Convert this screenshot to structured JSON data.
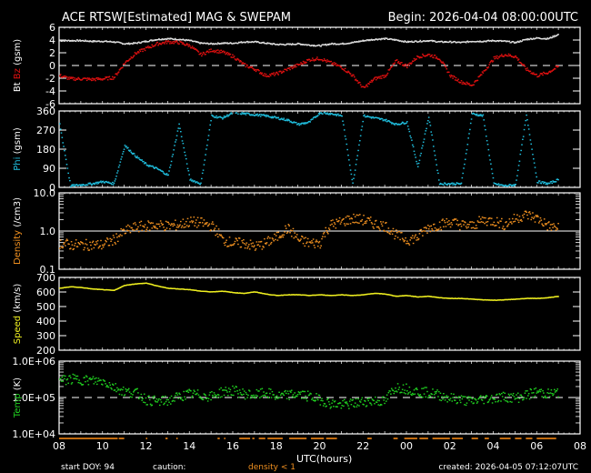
{
  "header": {
    "title": "ACE RTSW[Estimated] MAG & SWEPAM",
    "begin": "Begin: 2026-04-04 08:00:00UTC"
  },
  "footer": {
    "start_doy": "start DOY:  94",
    "caution": "caution:",
    "caution_note": "density < 1",
    "created": "created: 2026-04-05 07:12:07UTC",
    "xlabel": "UTC(hours)"
  },
  "colors": {
    "background": "#000000",
    "axis": "#ffffff",
    "bt": "#e0e0e0",
    "bz": "#e01010",
    "phi": "#20c0e0",
    "density": "#f09020",
    "speed": "#f0f020",
    "temp": "#20d020",
    "caution_bar": "#c06a10"
  },
  "chart_data": [
    {
      "type": "scatter",
      "title": "Bt / Bz",
      "ylabel_parts": [
        "Bt",
        "Bz",
        "(gsm)"
      ],
      "ylabel_colors": [
        "#ffffff",
        "#e01010",
        "#ffffff"
      ],
      "yticks": [
        "6",
        "4",
        "2",
        "0",
        "-2",
        "-4",
        "-6"
      ],
      "ylim": [
        -6,
        6
      ],
      "scale": "linear",
      "reference_line": 0,
      "x": [
        8,
        8.5,
        9,
        9.5,
        10,
        10.5,
        11,
        11.5,
        12,
        12.5,
        13,
        13.5,
        14,
        14.5,
        15,
        15.5,
        16,
        16.5,
        17,
        17.5,
        18,
        18.5,
        19,
        19.5,
        20,
        20.5,
        21,
        21.5,
        22,
        22.5,
        23,
        23.5,
        24,
        24.5,
        25,
        25.5,
        26,
        26.5,
        27,
        27.5,
        28,
        28.5,
        29,
        29.5,
        30,
        30.5,
        31
      ],
      "series": [
        {
          "name": "Bt",
          "color": "#e0e0e0",
          "values": [
            4.0,
            4.0,
            4.0,
            3.9,
            3.9,
            3.8,
            3.5,
            3.6,
            3.9,
            4.2,
            4.3,
            4.2,
            4.0,
            3.6,
            3.5,
            3.6,
            3.6,
            3.8,
            3.8,
            3.6,
            3.4,
            3.4,
            3.5,
            3.3,
            3.2,
            3.5,
            3.5,
            3.7,
            4.0,
            4.2,
            4.3,
            4.1,
            3.8,
            3.9,
            4.0,
            3.8,
            3.8,
            3.7,
            3.9,
            3.9,
            4.0,
            3.9,
            3.7,
            4.2,
            4.4,
            4.3,
            5.0
          ]
        },
        {
          "name": "Bz",
          "color": "#e01010",
          "values": [
            -1.5,
            -2.0,
            -2.0,
            -2.1,
            -2.0,
            -1.8,
            0.5,
            2.0,
            2.8,
            3.5,
            3.8,
            3.7,
            3.2,
            1.8,
            2.5,
            2.2,
            1.5,
            0.2,
            -0.5,
            -1.5,
            -1.2,
            -0.5,
            0.2,
            1.0,
            1.2,
            0.5,
            -0.2,
            -1.5,
            -3.5,
            -2.0,
            -1.5,
            0.8,
            0.0,
            1.5,
            1.8,
            1.2,
            -1.5,
            -2.5,
            -3.0,
            -1.0,
            1.2,
            1.8,
            1.5,
            -0.5,
            -1.5,
            -1.0,
            0.0
          ]
        }
      ]
    },
    {
      "type": "scatter",
      "title": "Phi",
      "ylabel_parts": [
        "Phi",
        "(gsm)"
      ],
      "ylabel_colors": [
        "#20c0e0",
        "#ffffff"
      ],
      "yticks": [
        "360",
        "270",
        "180",
        "90",
        "0"
      ],
      "ylim": [
        0,
        360
      ],
      "scale": "linear",
      "x": [
        8,
        8.5,
        9,
        9.5,
        10,
        10.5,
        11,
        11.5,
        12,
        12.5,
        13,
        13.5,
        14,
        14.5,
        15,
        15.5,
        16,
        16.5,
        17,
        17.5,
        18,
        18.5,
        19,
        19.5,
        20,
        20.5,
        21,
        21.5,
        22,
        22.5,
        23,
        23.5,
        24,
        24.5,
        25,
        25.5,
        26,
        26.5,
        27,
        27.5,
        28,
        28.5,
        29,
        29.5,
        30,
        30.5,
        31
      ],
      "series": [
        {
          "name": "Phi",
          "color": "#20c0e0",
          "values": [
            300,
            10,
            15,
            20,
            30,
            20,
            200,
            150,
            110,
            90,
            60,
            300,
            40,
            20,
            340,
            330,
            355,
            350,
            345,
            340,
            330,
            320,
            300,
            310,
            355,
            350,
            340,
            20,
            340,
            330,
            320,
            300,
            310,
            100,
            335,
            20,
            20,
            20,
            350,
            340,
            20,
            10,
            15,
            340,
            30,
            20,
            40
          ]
        }
      ]
    },
    {
      "type": "scatter",
      "title": "Density",
      "ylabel_parts": [
        "Density",
        "(/cm3)"
      ],
      "ylabel_colors": [
        "#f09020",
        "#ffffff"
      ],
      "yticks": [
        "10.0",
        "1.0",
        "0.1"
      ],
      "ylim": [
        0.1,
        10
      ],
      "scale": "log",
      "reference_line": 1.0,
      "x": [
        8,
        8.5,
        9,
        9.5,
        10,
        10.5,
        11,
        11.5,
        12,
        12.5,
        13,
        13.5,
        14,
        14.5,
        15,
        15.5,
        16,
        16.5,
        17,
        17.5,
        18,
        18.5,
        19,
        19.5,
        20,
        20.5,
        21,
        21.5,
        22,
        22.5,
        23,
        23.5,
        24,
        24.5,
        25,
        25.5,
        26,
        26.5,
        27,
        27.5,
        28,
        28.5,
        29,
        29.5,
        30,
        30.5,
        31
      ],
      "series": [
        {
          "name": "Density",
          "color": "#f09020",
          "values": [
            0.5,
            0.45,
            0.45,
            0.45,
            0.45,
            0.6,
            1.0,
            1.3,
            1.4,
            1.5,
            1.4,
            1.5,
            1.8,
            1.7,
            1.4,
            0.6,
            0.5,
            0.5,
            0.4,
            0.5,
            0.7,
            1.2,
            0.6,
            0.5,
            0.5,
            1.5,
            1.8,
            2.2,
            2.0,
            1.6,
            1.4,
            0.8,
            0.6,
            0.7,
            1.3,
            1.5,
            1.8,
            1.5,
            1.4,
            2.0,
            1.9,
            1.5,
            2.2,
            2.8,
            2.2,
            1.4,
            1.2
          ]
        }
      ]
    },
    {
      "type": "scatter",
      "title": "Speed",
      "ylabel_parts": [
        "Speed",
        "(km/s)"
      ],
      "ylabel_colors": [
        "#f0f020",
        "#ffffff"
      ],
      "yticks": [
        "700",
        "600",
        "500",
        "400",
        "300",
        "200"
      ],
      "ylim": [
        200,
        700
      ],
      "scale": "linear",
      "x": [
        8,
        8.5,
        9,
        9.5,
        10,
        10.5,
        11,
        11.5,
        12,
        12.5,
        13,
        13.5,
        14,
        14.5,
        15,
        15.5,
        16,
        16.5,
        17,
        17.5,
        18,
        18.5,
        19,
        19.5,
        20,
        20.5,
        21,
        21.5,
        22,
        22.5,
        23,
        23.5,
        24,
        24.5,
        25,
        25.5,
        26,
        26.5,
        27,
        27.5,
        28,
        28.5,
        29,
        29.5,
        30,
        30.5,
        31
      ],
      "series": [
        {
          "name": "Speed",
          "color": "#f0f020",
          "values": [
            630,
            640,
            635,
            625,
            620,
            615,
            650,
            660,
            665,
            645,
            630,
            625,
            620,
            610,
            605,
            610,
            600,
            595,
            605,
            590,
            580,
            585,
            585,
            580,
            585,
            580,
            585,
            580,
            585,
            595,
            590,
            575,
            580,
            570,
            575,
            565,
            560,
            560,
            555,
            550,
            548,
            550,
            555,
            560,
            560,
            565,
            575
          ]
        }
      ]
    },
    {
      "type": "scatter",
      "title": "Temp",
      "ylabel_parts": [
        "Temp",
        "(K)"
      ],
      "ylabel_colors": [
        "#20d020",
        "#ffffff"
      ],
      "yticks": [
        "1.0E+06",
        "1.0E+05",
        "1.0E+04"
      ],
      "ylim": [
        10000,
        1000000
      ],
      "scale": "log",
      "reference_line": 100000,
      "x": [
        8,
        8.5,
        9,
        9.5,
        10,
        10.5,
        11,
        11.5,
        12,
        12.5,
        13,
        13.5,
        14,
        14.5,
        15,
        15.5,
        16,
        16.5,
        17,
        17.5,
        18,
        18.5,
        19,
        19.5,
        20,
        20.5,
        21,
        21.5,
        22,
        22.5,
        23,
        23.5,
        24,
        24.5,
        25,
        25.5,
        26,
        26.5,
        27,
        27.5,
        28,
        28.5,
        29,
        29.5,
        30,
        30.5,
        31
      ],
      "series": [
        {
          "name": "Temp",
          "color": "#20d020",
          "values": [
            300000,
            330000,
            320000,
            300000,
            290000,
            200000,
            150000,
            140000,
            90000,
            80000,
            85000,
            110000,
            130000,
            120000,
            110000,
            150000,
            160000,
            130000,
            120000,
            140000,
            110000,
            120000,
            130000,
            110000,
            90000,
            70000,
            65000,
            70000,
            80000,
            85000,
            80000,
            200000,
            180000,
            150000,
            140000,
            120000,
            100000,
            90000,
            80000,
            95000,
            100000,
            110000,
            100000,
            120000,
            150000,
            130000,
            140000
          ]
        }
      ]
    }
  ],
  "xaxis": {
    "label": "UTC(hours)",
    "ticks": [
      "08",
      "10",
      "12",
      "14",
      "16",
      "18",
      "20",
      "22",
      "00",
      "02",
      "04",
      "06",
      "08"
    ]
  },
  "caution_segments": [
    [
      8.0,
      10.7
    ],
    [
      10.75,
      11.0
    ],
    [
      12.0,
      12.05
    ],
    [
      12.9,
      13.0
    ],
    [
      13.4,
      13.45
    ],
    [
      15.3,
      15.4
    ],
    [
      15.6,
      15.65
    ],
    [
      16.3,
      16.8
    ],
    [
      16.9,
      17.0
    ],
    [
      17.2,
      17.5
    ],
    [
      17.6,
      18.3
    ],
    [
      18.6,
      19.4
    ],
    [
      19.6,
      20.2
    ],
    [
      20.3,
      20.8
    ],
    [
      22.2,
      22.4
    ],
    [
      23.4,
      23.6
    ],
    [
      23.9,
      24.5
    ],
    [
      24.6,
      25.0
    ],
    [
      25.2,
      26.0
    ],
    [
      26.1,
      26.6
    ],
    [
      27.0,
      27.3
    ],
    [
      27.6,
      27.8
    ],
    [
      28.3,
      28.8
    ],
    [
      29.0,
      29.3
    ],
    [
      29.5,
      29.8
    ],
    [
      30.0,
      30.9
    ]
  ]
}
